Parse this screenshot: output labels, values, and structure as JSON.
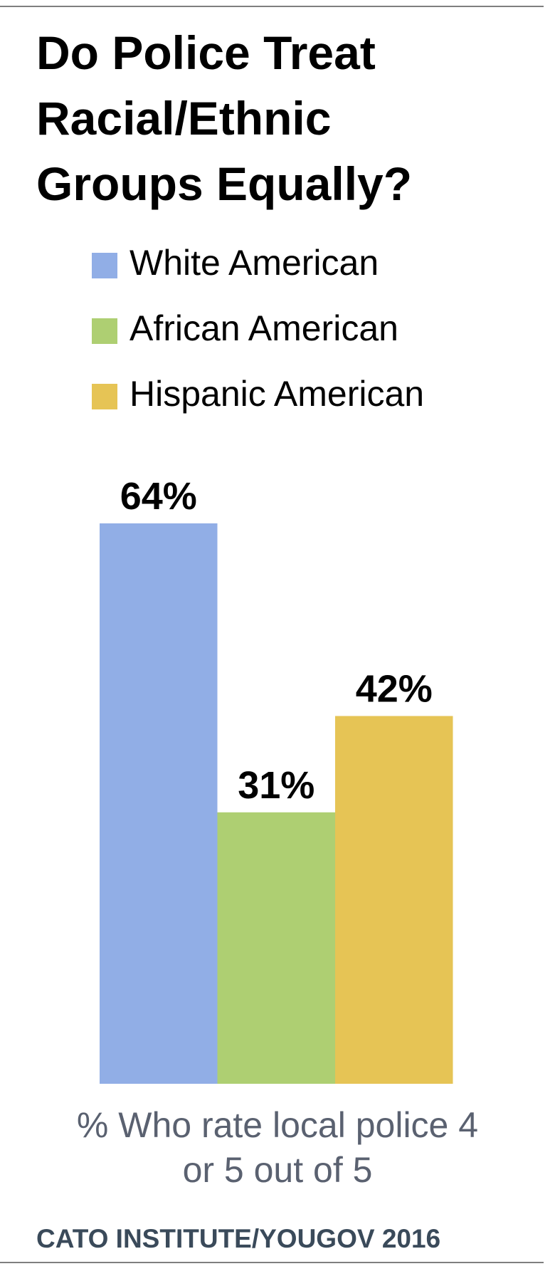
{
  "chart_data": {
    "type": "bar",
    "title": [
      "Do Police Treat",
      "Racial/Ethnic",
      "Groups Equally?"
    ],
    "categories": [
      null
    ],
    "series": [
      {
        "name": "White American",
        "color": "#91aee6",
        "values": [
          64
        ],
        "value_labels": [
          "64%"
        ]
      },
      {
        "name": "African American",
        "color": "#aecf72",
        "values": [
          31
        ],
        "value_labels": [
          "31%"
        ]
      },
      {
        "name": "Hispanic American",
        "color": "#e6c455",
        "values": [
          42
        ],
        "value_labels": [
          "42%"
        ]
      }
    ],
    "caption": [
      "% Who rate local police 4",
      "or 5 out of 5"
    ],
    "source": "CATO INSTITUTE/YOUGOV 2016",
    "legend": "top"
  }
}
